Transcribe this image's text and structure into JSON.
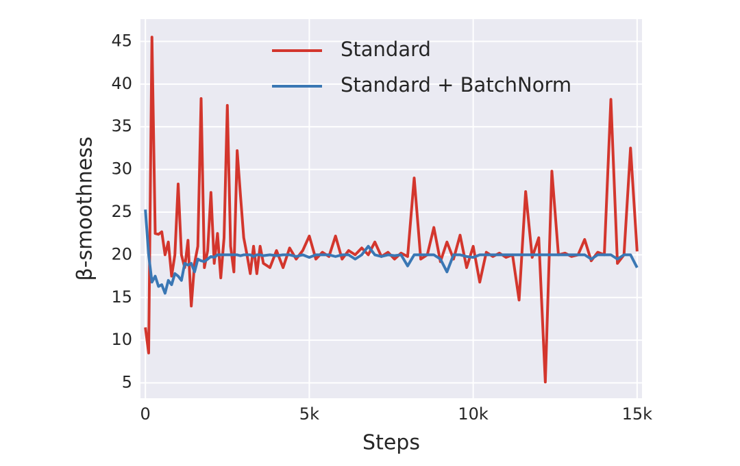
{
  "chart_data": {
    "type": "line",
    "xlabel": "Steps",
    "ylabel": "β-smoothness",
    "x": [
      0,
      100,
      200,
      300,
      400,
      500,
      600,
      700,
      800,
      900,
      1000,
      1100,
      1200,
      1300,
      1400,
      1500,
      1600,
      1700,
      1800,
      1900,
      2000,
      2100,
      2200,
      2300,
      2400,
      2500,
      2600,
      2700,
      2800,
      2900,
      3000,
      3100,
      3200,
      3300,
      3400,
      3500,
      3600,
      3800,
      4000,
      4200,
      4400,
      4600,
      4800,
      5000,
      5200,
      5400,
      5600,
      5800,
      6000,
      6200,
      6400,
      6600,
      6800,
      7000,
      7200,
      7400,
      7600,
      7800,
      8000,
      8200,
      8400,
      8600,
      8800,
      9000,
      9200,
      9400,
      9600,
      9800,
      10000,
      10200,
      10400,
      10600,
      10800,
      11000,
      11200,
      11400,
      11600,
      11800,
      12000,
      12200,
      12400,
      12600,
      12800,
      13000,
      13200,
      13400,
      13600,
      13800,
      14000,
      14200,
      14400,
      14600,
      14800,
      15000
    ],
    "series": [
      {
        "name": "Standard",
        "color": "#d3362d",
        "values": [
          11.5,
          8.5,
          45.5,
          22.5,
          22.4,
          22.7,
          20,
          21.5,
          17.5,
          20,
          28.3,
          20,
          18.5,
          21.7,
          14,
          19,
          21,
          38.3,
          18.5,
          20.5,
          27.3,
          19,
          22.5,
          17.3,
          22,
          37.5,
          21,
          18,
          32.2,
          27,
          22,
          20,
          17.8,
          21,
          17.8,
          21,
          19,
          18.5,
          20.5,
          18.5,
          20.8,
          19.5,
          20.5,
          22.2,
          19.5,
          20.3,
          19.8,
          22.2,
          19.5,
          20.5,
          20,
          20.8,
          20,
          21.5,
          19.8,
          20.3,
          19.5,
          20.2,
          19.8,
          29,
          19.5,
          20,
          23.2,
          19.2,
          21.5,
          19.5,
          22.3,
          18.5,
          21,
          16.8,
          20.3,
          19.8,
          20.2,
          19.7,
          20,
          14.7,
          27.4,
          19.7,
          22,
          5.1,
          29.8,
          20,
          20.2,
          19.8,
          20,
          21.8,
          19.3,
          20.3,
          20,
          38.2,
          19,
          20,
          32.5,
          20.4
        ]
      },
      {
        "name": "Standard + BatchNorm",
        "color": "#3a77b4",
        "values": [
          25.3,
          20,
          16.8,
          17.5,
          16.3,
          16.5,
          15.5,
          17,
          16.5,
          17.8,
          17.5,
          17,
          19,
          18.8,
          19,
          18,
          19.5,
          19.3,
          19.2,
          19.5,
          19.8,
          19.7,
          20,
          20,
          20,
          20,
          20,
          20,
          20,
          19.9,
          20,
          20,
          20,
          19.8,
          20,
          20,
          19.9,
          20,
          19.9,
          20,
          20,
          19.8,
          20,
          19.7,
          20,
          20,
          20,
          19.8,
          20,
          20,
          19.5,
          20,
          21,
          20,
          19.8,
          20,
          19.9,
          20,
          18.7,
          20,
          20,
          20,
          20,
          19.5,
          18,
          20,
          20,
          19.8,
          19.7,
          20,
          20,
          20,
          20,
          20,
          20,
          20,
          20,
          20,
          20,
          20,
          20,
          20,
          20,
          20,
          20,
          20,
          19.5,
          20,
          20,
          20,
          19.5,
          20,
          20,
          18.5
        ]
      }
    ],
    "xlim": [
      -150,
      15150
    ],
    "ylim": [
      3.2,
      47.6
    ],
    "xticks": [
      0,
      {
        "value": 5000,
        "label": "5k"
      },
      {
        "value": 10000,
        "label": "10k"
      },
      {
        "value": 15000,
        "label": "15k"
      }
    ],
    "yticks": [
      5,
      10,
      15,
      20,
      25,
      30,
      35,
      40,
      45
    ],
    "grid": true,
    "legend": "upper center"
  }
}
